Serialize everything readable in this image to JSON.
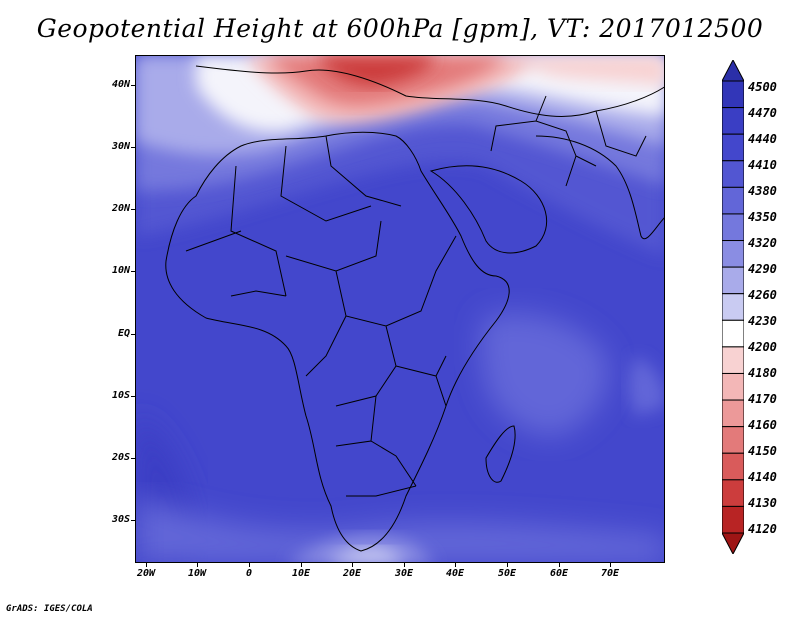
{
  "title": "Geopotential Height at 600hPa [gpm], VT: 2017012500",
  "credit": "GrADS: IGES/COLA",
  "lat_labels": [
    "40N",
    "30N",
    "20N",
    "10N",
    "EQ",
    "10S",
    "20S",
    "30S"
  ],
  "lon_labels": [
    "20W",
    "10W",
    "0",
    "10E",
    "20E",
    "30E",
    "40E",
    "50E",
    "60E",
    "70E"
  ],
  "colorbar": {
    "labels": [
      "4500",
      "4470",
      "4440",
      "4410",
      "4380",
      "4350",
      "4320",
      "4290",
      "4260",
      "4230",
      "4200",
      "4180",
      "4170",
      "4160",
      "4150",
      "4140",
      "4130",
      "4120"
    ],
    "colors": [
      "#2b2fa8",
      "#3236b8",
      "#3a3ec4",
      "#4347cc",
      "#5256d2",
      "#6266d8",
      "#7478dd",
      "#8a8de3",
      "#a9abea",
      "#c9cbf2",
      "#ffffff",
      "#f8d2d2",
      "#f3b7b7",
      "#ec9999",
      "#e37a7a",
      "#d95b5b",
      "#cc3d3d",
      "#b82424",
      "#9e1515"
    ]
  },
  "map": {
    "bounds": {
      "lon_min": -25,
      "lon_max": 80,
      "lat_min": -37,
      "lat_max": 45
    },
    "background_color": "#4347cc"
  }
}
